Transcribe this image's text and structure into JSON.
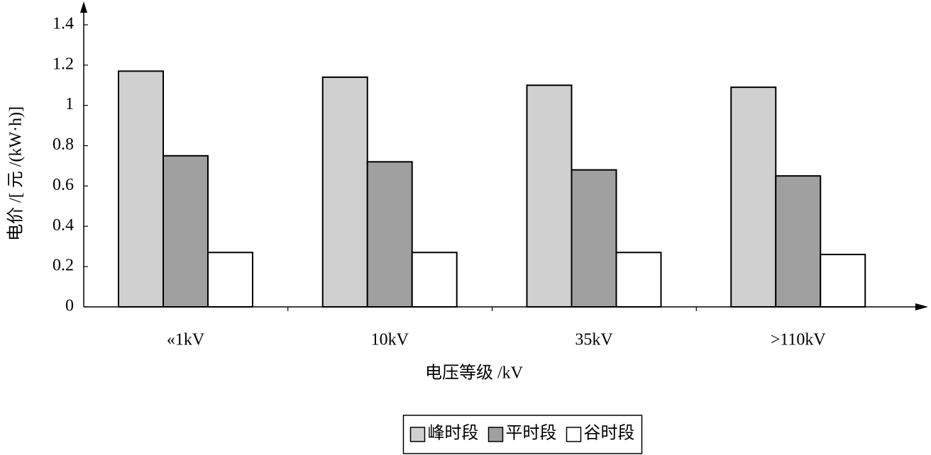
{
  "chart_data": {
    "type": "bar",
    "x_label": "电压等级 /kV",
    "y_label": "电价 /[ 元 /(kW·h)]",
    "categories": [
      "«1kV",
      "10kV",
      "35kV",
      ">110kV"
    ],
    "series": [
      {
        "name": "峰时段",
        "color": "#d0d0d0",
        "values": [
          1.17,
          1.14,
          1.1,
          1.09
        ]
      },
      {
        "name": "平时段",
        "color": "#a0a0a0",
        "values": [
          0.75,
          0.72,
          0.68,
          0.65
        ]
      },
      {
        "name": "谷时段",
        "color": "#ffffff",
        "values": [
          0.27,
          0.27,
          0.27,
          0.26
        ]
      }
    ],
    "ylim": [
      0,
      1.4
    ],
    "yticks": [
      0,
      0.2,
      0.4,
      0.6,
      0.8,
      1,
      1.2,
      1.4
    ],
    "legend": "bottom"
  }
}
